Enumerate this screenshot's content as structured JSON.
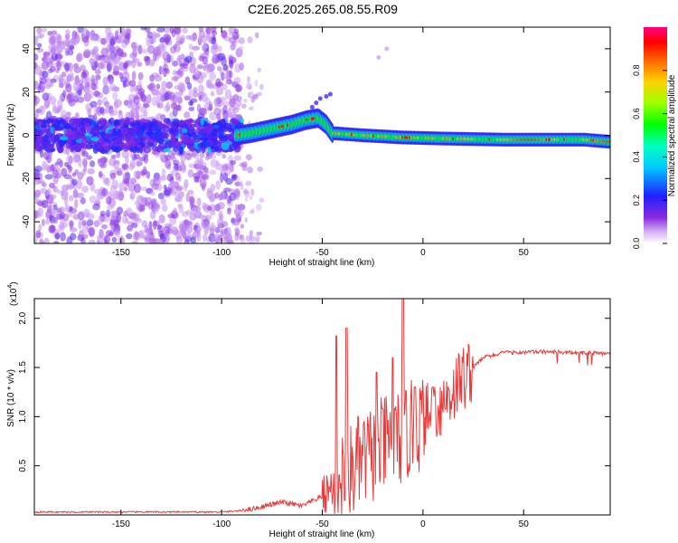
{
  "title": "C2E6.2025.265.08.55.R09",
  "colors": {
    "snr_line": "#e83a3a",
    "axis": "#000000",
    "background": "#ffffff"
  },
  "chart_data": [
    {
      "type": "heatmap",
      "xlabel": "Height of straight line (km)",
      "ylabel": "Frequency (Hz)",
      "xlim": [
        -193,
        93
      ],
      "ylim": [
        -50,
        50
      ],
      "x_ticks": [
        -150,
        -100,
        -50,
        0,
        50
      ],
      "y_ticks": [
        -40,
        -20,
        0,
        20,
        40
      ],
      "colorbar": {
        "label": "Normalized spectral amplitude",
        "range": [
          0,
          1
        ],
        "ticks": [
          "0.0",
          "0.2",
          "0.4",
          "0.6",
          "0.8"
        ],
        "colormap": "rainbow"
      },
      "ridge": [
        {
          "x": -92,
          "freq": 0
        },
        {
          "x": -85,
          "freq": 1
        },
        {
          "x": -75,
          "freq": 3
        },
        {
          "x": -65,
          "freq": 5
        },
        {
          "x": -58,
          "freq": 7
        },
        {
          "x": -52,
          "freq": 8
        },
        {
          "x": -48,
          "freq": 5
        },
        {
          "x": -45,
          "freq": 1
        },
        {
          "x": -30,
          "freq": 0
        },
        {
          "x": -10,
          "freq": -1
        },
        {
          "x": 10,
          "freq": -1.5
        },
        {
          "x": 40,
          "freq": -2
        },
        {
          "x": 80,
          "freq": -2
        },
        {
          "x": 93,
          "freq": -3
        }
      ]
    },
    {
      "type": "line",
      "xlabel": "Height of straight line (km)",
      "ylabel": "SNR (10 * v/v)",
      "y_multiplier": "(x10",
      "y_multiplier_exp": "4",
      "xlim": [
        -193,
        93
      ],
      "ylim": [
        0,
        2.2
      ],
      "x_ticks": [
        -150,
        -100,
        -50,
        0,
        50
      ],
      "y_ticks": [
        "0.5",
        "1.0",
        "1.5",
        "2.0"
      ],
      "envelope": [
        {
          "x": -193,
          "y": 0.03
        },
        {
          "x": -100,
          "y": 0.03
        },
        {
          "x": -85,
          "y": 0.05
        },
        {
          "x": -70,
          "y": 0.12
        },
        {
          "x": -60,
          "y": 0.08
        },
        {
          "x": -50,
          "y": 0.18
        },
        {
          "x": -44,
          "y": 0.3
        },
        {
          "x": -30,
          "y": 0.55
        },
        {
          "x": -20,
          "y": 0.7
        },
        {
          "x": -10,
          "y": 0.8
        },
        {
          "x": 0,
          "y": 0.95
        },
        {
          "x": 10,
          "y": 1.15
        },
        {
          "x": 20,
          "y": 1.4
        },
        {
          "x": 30,
          "y": 1.6
        },
        {
          "x": 40,
          "y": 1.65
        },
        {
          "x": 60,
          "y": 1.66
        },
        {
          "x": 93,
          "y": 1.64
        }
      ],
      "spikes": [
        {
          "x": -43,
          "y": 1.82
        },
        {
          "x": -38,
          "y": 1.9
        },
        {
          "x": -23,
          "y": 1.45
        },
        {
          "x": -15,
          "y": 1.6
        },
        {
          "x": -10,
          "y": 2.2
        },
        {
          "x": -4,
          "y": 1.3
        },
        {
          "x": 5,
          "y": 1.3
        }
      ]
    }
  ]
}
